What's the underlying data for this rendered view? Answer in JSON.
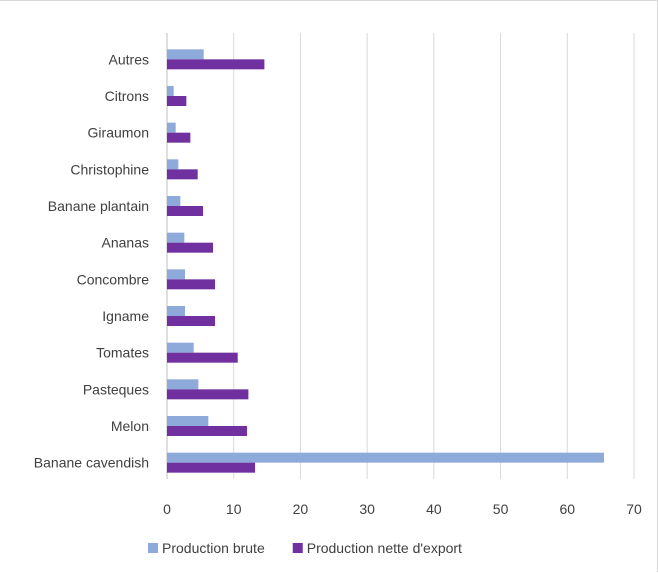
{
  "chart_data": {
    "type": "bar",
    "orientation": "horizontal",
    "categories": [
      "Banane cavendish",
      "Melon",
      "Pasteques",
      "Tomates",
      "Igname",
      "Concombre",
      "Ananas",
      "Banane plantain",
      "Christophine",
      "Giraumon",
      "Citrons",
      "Autres"
    ],
    "series": [
      {
        "name": "Production brute",
        "color": "#8eaadb",
        "values": [
          65.5,
          6.2,
          4.7,
          4.0,
          2.7,
          2.7,
          2.6,
          2.0,
          1.7,
          1.3,
          1.0,
          5.5
        ]
      },
      {
        "name": "Production nette d'export",
        "color": "#7030a0",
        "values": [
          13.2,
          12.0,
          12.2,
          10.6,
          7.2,
          7.2,
          6.9,
          5.4,
          4.6,
          3.5,
          2.9,
          14.6
        ]
      }
    ],
    "xlim": [
      0,
      70
    ],
    "xticks": [
      0,
      10,
      20,
      30,
      40,
      50,
      60,
      70
    ],
    "grid": true,
    "legend_position": "bottom",
    "title": "",
    "xlabel": "",
    "ylabel": ""
  }
}
